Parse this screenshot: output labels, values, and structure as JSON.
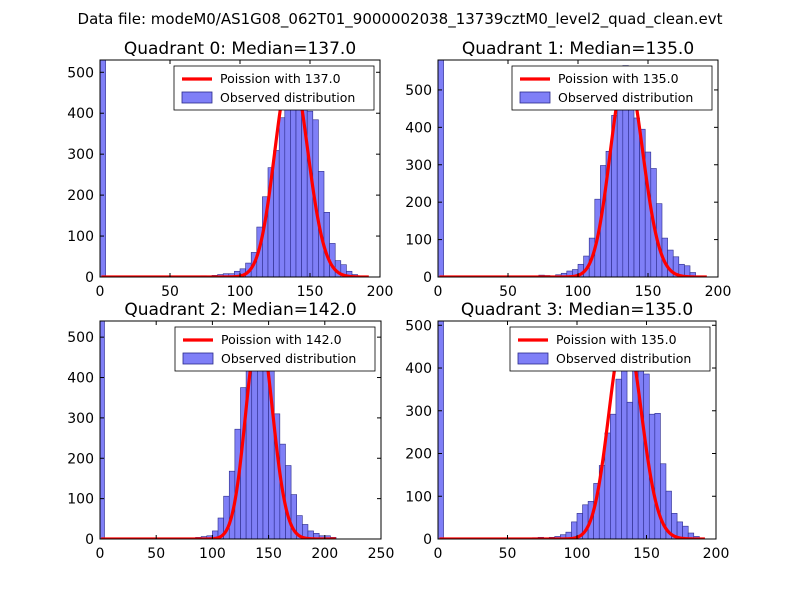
{
  "suptitle": "Data file: modeM0/AS1G08_062T01_9000002038_13739cztM0_level2_quad_clean.evt",
  "colors": {
    "hist_fill": "#7f7ff7",
    "hist_edge": "#2a2a8a",
    "fit": "#ff0000"
  },
  "chart_data": [
    {
      "type": "bar",
      "title": "Quadrant 0: Median=137.0",
      "xlim": [
        0,
        200
      ],
      "ylim": [
        0,
        530
      ],
      "xticks": [
        "0",
        "50",
        "100",
        "150",
        "200"
      ],
      "yticks": [
        "0",
        "100",
        "200",
        "300",
        "400",
        "500"
      ],
      "legend": {
        "fit": "Poission with 137.0",
        "hist": "Observed distribution",
        "position": "top-right"
      },
      "poisson_mean": 137.0,
      "poisson_peak": 510,
      "edge_bar": {
        "x0": 0,
        "x1": 4,
        "value": 530
      },
      "bin_width": 4,
      "bin_starts": [
        56,
        60,
        64,
        68,
        72,
        76,
        80,
        84,
        88,
        92,
        96,
        100,
        104,
        108,
        112,
        116,
        120,
        124,
        128,
        132,
        136,
        140,
        144,
        148,
        152,
        156,
        160,
        164,
        168,
        172,
        176,
        180
      ],
      "counts": [
        1,
        0,
        2,
        1,
        3,
        2,
        4,
        6,
        8,
        8,
        14,
        20,
        34,
        60,
        122,
        196,
        267,
        309,
        389,
        455,
        500,
        505,
        484,
        405,
        384,
        258,
        158,
        82,
        40,
        30,
        14,
        6
      ]
    },
    {
      "type": "bar",
      "title": "Quadrant 1: Median=135.0",
      "xlim": [
        0,
        200
      ],
      "ylim": [
        0,
        580
      ],
      "xticks": [
        "0",
        "50",
        "100",
        "150",
        "200"
      ],
      "yticks": [
        "0",
        "100",
        "200",
        "300",
        "400",
        "500"
      ],
      "legend": {
        "fit": "Poission with 135.0",
        "hist": "Observed distribution",
        "position": "top-right"
      },
      "poisson_mean": 135.0,
      "poisson_peak": 550,
      "edge_bar": {
        "x0": 0,
        "x1": 4,
        "value": 580
      },
      "bin_width": 4,
      "bin_starts": [
        72,
        76,
        80,
        84,
        88,
        92,
        96,
        100,
        104,
        108,
        112,
        116,
        120,
        124,
        128,
        132,
        136,
        140,
        144,
        148,
        152,
        156,
        160,
        164,
        168,
        172,
        176,
        180
      ],
      "counts": [
        5,
        4,
        3,
        6,
        10,
        16,
        20,
        34,
        56,
        104,
        208,
        298,
        336,
        432,
        474,
        565,
        518,
        425,
        395,
        334,
        290,
        196,
        104,
        72,
        54,
        34,
        30,
        12
      ]
    },
    {
      "type": "bar",
      "title": "Quadrant 2: Median=142.0",
      "xlim": [
        0,
        250
      ],
      "ylim": [
        0,
        540
      ],
      "xticks": [
        "0",
        "50",
        "100",
        "150",
        "200",
        "250"
      ],
      "yticks": [
        "0",
        "100",
        "200",
        "300",
        "400",
        "500"
      ],
      "legend": {
        "fit": "Poission with 142.0",
        "hist": "Observed distribution",
        "position": "top-right"
      },
      "poisson_mean": 142.0,
      "poisson_peak": 520,
      "edge_bar": {
        "x0": 0,
        "x1": 4,
        "value": 540
      },
      "bin_width": 5,
      "bin_starts": [
        80,
        85,
        90,
        95,
        100,
        105,
        110,
        115,
        120,
        125,
        130,
        135,
        140,
        145,
        150,
        155,
        160,
        165,
        170,
        175,
        180,
        185,
        190,
        195,
        200,
        205
      ],
      "counts": [
        2,
        4,
        6,
        8,
        20,
        52,
        106,
        168,
        272,
        375,
        422,
        452,
        470,
        520,
        450,
        310,
        235,
        182,
        110,
        58,
        36,
        20,
        14,
        8,
        8,
        4
      ]
    },
    {
      "type": "bar",
      "title": "Quadrant 3: Median=135.0",
      "xlim": [
        0,
        200
      ],
      "ylim": [
        0,
        510
      ],
      "xticks": [
        "0",
        "50",
        "100",
        "150",
        "200"
      ],
      "yticks": [
        "0",
        "100",
        "200",
        "300",
        "400",
        "500"
      ],
      "legend": {
        "fit": "Poission with 135.0",
        "hist": "Observed distribution",
        "position": "top-right"
      },
      "poisson_mean": 135.0,
      "poisson_peak": 490,
      "edge_bar": {
        "x0": 0,
        "x1": 4,
        "value": 510
      },
      "bin_width": 4,
      "bin_starts": [
        52,
        56,
        60,
        64,
        68,
        72,
        76,
        80,
        84,
        88,
        92,
        96,
        100,
        104,
        108,
        112,
        116,
        120,
        124,
        128,
        132,
        136,
        140,
        144,
        148,
        152,
        156,
        160,
        164,
        168,
        172,
        176,
        180,
        184
      ],
      "counts": [
        1,
        0,
        2,
        0,
        3,
        4,
        2,
        4,
        6,
        10,
        16,
        40,
        60,
        80,
        88,
        130,
        172,
        248,
        292,
        374,
        408,
        320,
        488,
        450,
        386,
        292,
        294,
        176,
        112,
        60,
        40,
        30,
        14,
        6
      ]
    }
  ]
}
